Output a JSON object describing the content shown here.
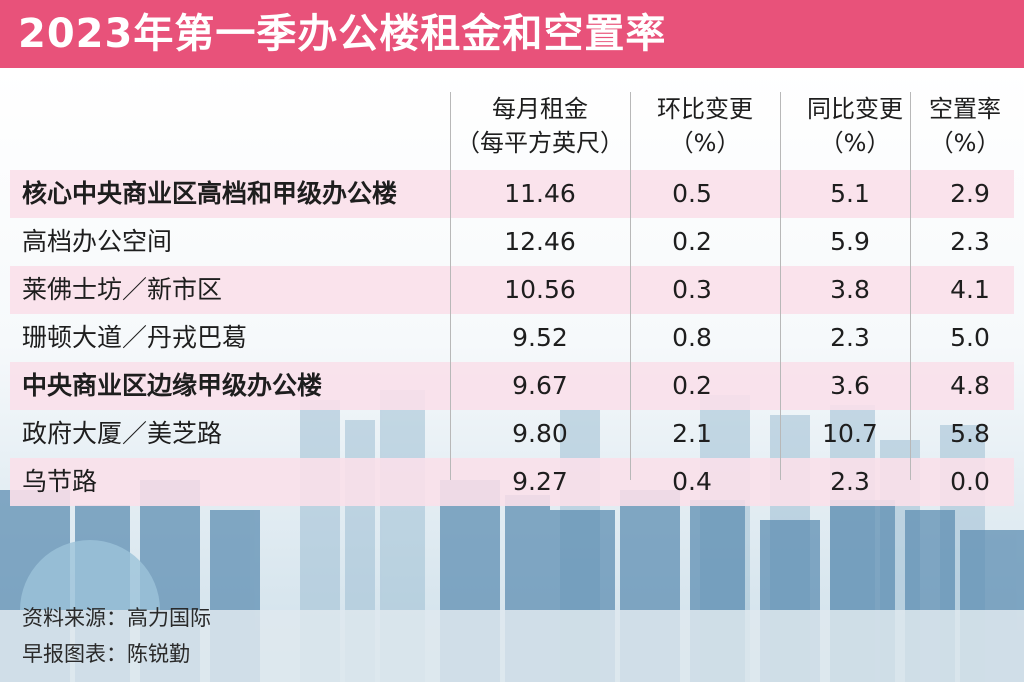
{
  "title": "2023年第一季办公楼租金和空置率",
  "chart_data": {
    "type": "table",
    "columns": [
      {
        "line1": "每月租金",
        "line2": "（每平方英尺）"
      },
      {
        "line1": "环比变更",
        "line2": "（%）"
      },
      {
        "line1": "同比变更",
        "line2": "（%）"
      },
      {
        "line1": "空置率",
        "line2": "（%）"
      }
    ],
    "rows": [
      {
        "label": "核心中央商业区高档和甲级办公楼",
        "bold": true,
        "values": [
          "11.46",
          "0.5",
          "5.1",
          "2.9"
        ]
      },
      {
        "label": "高档办公空间",
        "bold": false,
        "values": [
          "12.46",
          "0.2",
          "5.9",
          "2.3"
        ]
      },
      {
        "label": "莱佛士坊／新市区",
        "bold": false,
        "values": [
          "10.56",
          "0.3",
          "3.8",
          "4.1"
        ]
      },
      {
        "label": "珊顿大道／丹戎巴葛",
        "bold": false,
        "values": [
          "9.52",
          "0.8",
          "2.3",
          "5.0"
        ]
      },
      {
        "label": "中央商业区边缘甲级办公楼",
        "bold": true,
        "values": [
          "9.67",
          "0.2",
          "3.6",
          "4.8"
        ]
      },
      {
        "label": "政府大厦／美芝路",
        "bold": false,
        "values": [
          "9.80",
          "2.1",
          "10.7",
          "5.8"
        ]
      },
      {
        "label": "乌节路",
        "bold": false,
        "values": [
          "9.27",
          "0.4",
          "2.3",
          "0.0"
        ]
      }
    ]
  },
  "footer": {
    "source": "资料来源：高力国际",
    "credit": "早报图表：陈锐勤"
  },
  "colors": {
    "title_bar": "#e8527a",
    "row_highlight": "#fae0ea"
  }
}
